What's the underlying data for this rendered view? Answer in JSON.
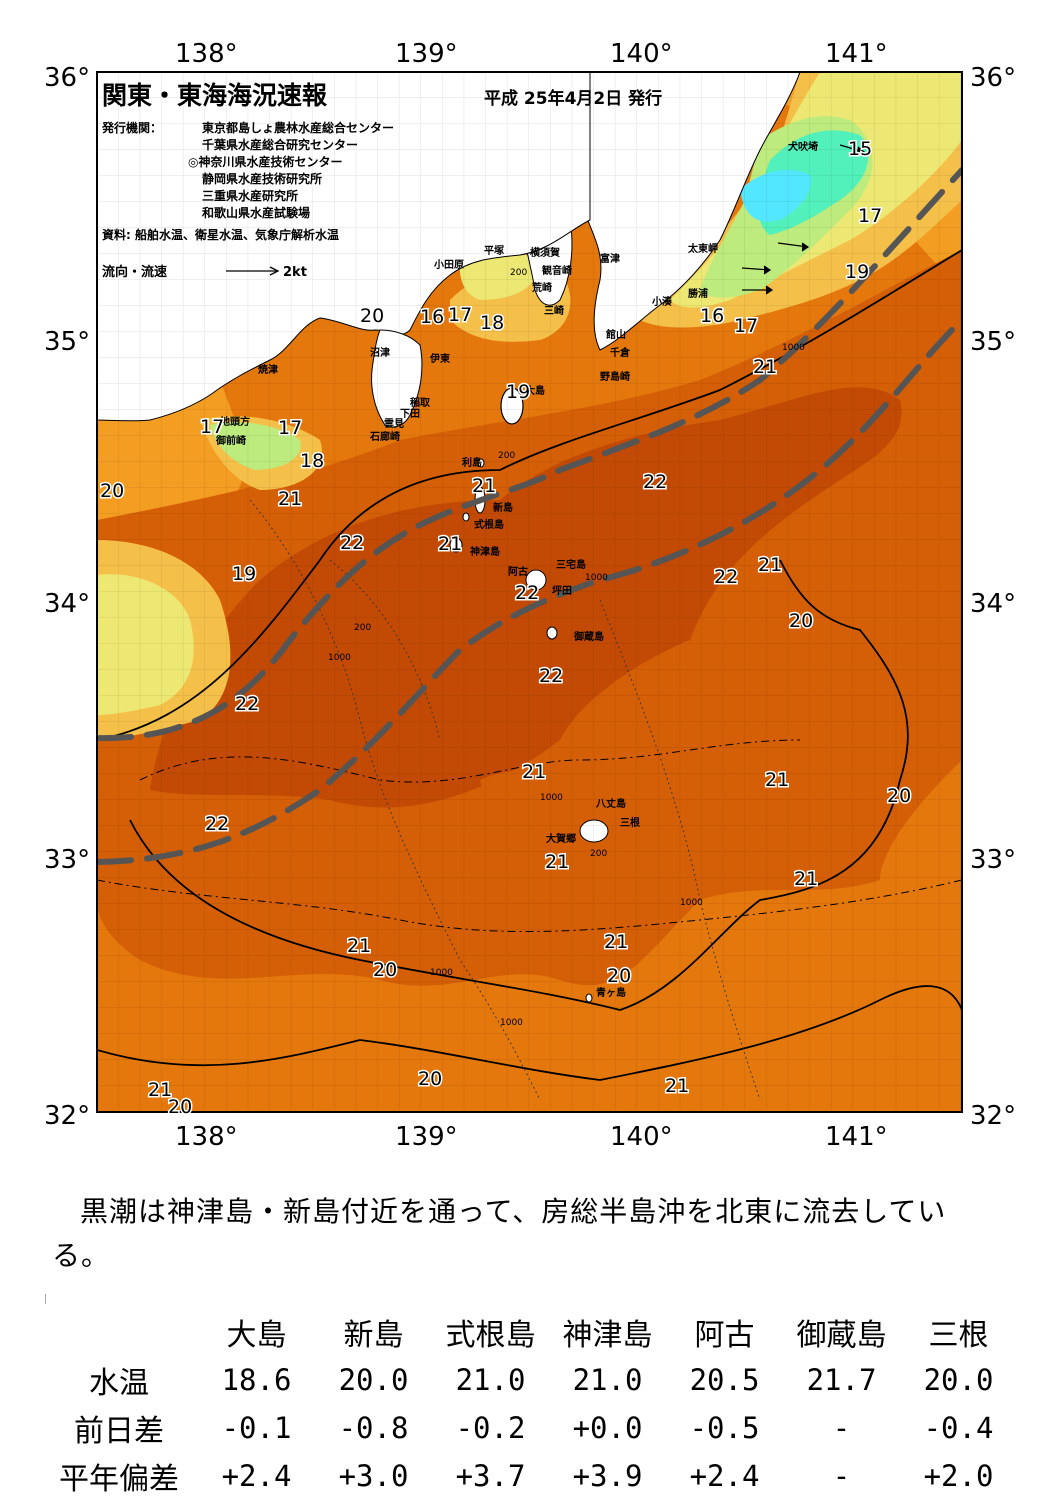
{
  "map": {
    "title": "関東・東海海況速報",
    "date": "平成 25年4月2日 発行",
    "publisher_label": "発行機関：",
    "publishers": [
      "東京都島しょ農林水産総合センター",
      "千葉県水産総合研究センター",
      "◎神奈川県水産技術センター",
      "静岡県水産技術研究所",
      "三重県水産研究所",
      "和歌山県水産試験場"
    ],
    "sources": "資料: 船舶水温、衛星水温、気象庁解析水温",
    "flow_legend_label": "流向・流速",
    "flow_legend_scale": "2kt",
    "lon_labels": [
      "138°",
      "139°",
      "140°",
      "141°"
    ],
    "lat_labels": [
      "36°",
      "35°",
      "34°",
      "33°",
      "32°"
    ],
    "place_names": [
      "犬吠埼",
      "太東岬",
      "勝浦",
      "小湊",
      "富津",
      "横須賀",
      "観音崎",
      "平塚",
      "荒崎",
      "三崎",
      "小田原",
      "館山",
      "千倉",
      "野島崎",
      "沼津",
      "伊東",
      "焼津",
      "稲取",
      "下田",
      "雲見",
      "石廊崎",
      "地頭方",
      "御前崎",
      "大島",
      "利島",
      "新島",
      "式根島",
      "神津島",
      "三宅島",
      "阿古",
      "坪田",
      "御蔵島",
      "八丈島",
      "三根",
      "大賀郷",
      "青ヶ島"
    ],
    "isotherm_labels": [
      "15",
      "16",
      "17",
      "18",
      "19",
      "20",
      "21",
      "22"
    ],
    "depth_labels": [
      "200",
      "1000"
    ],
    "colors": {
      "t22": "#c24a04",
      "t21": "#d45f06",
      "t20": "#e4780d",
      "t19": "#f39d22",
      "t18": "#f5c04a",
      "t17": "#ece873",
      "t16": "#bdeb7d",
      "t15": "#52f0ba",
      "t14": "#53e6ff",
      "land": "#ffffff",
      "kuroshio_axis": "#555555"
    }
  },
  "description": "黒潮は神津島・新島付近を通って、房総半島沖を北東に流去している。",
  "table": {
    "columns": [
      "大島",
      "新島",
      "式根島",
      "神津島",
      "阿古",
      "御蔵島",
      "三根"
    ],
    "rows": [
      {
        "label": "水温",
        "values": [
          "18.6",
          "20.0",
          "21.0",
          "21.0",
          "20.5",
          "21.7",
          "20.0"
        ]
      },
      {
        "label": "前日差",
        "values": [
          "-0.1",
          "-0.8",
          "-0.2",
          "+0.0",
          "-0.5",
          "-",
          "-0.4"
        ]
      },
      {
        "label": "平年偏差",
        "values": [
          "+2.4",
          "+3.0",
          "+3.7",
          "+3.9",
          "+2.4",
          "-",
          "+2.0"
        ]
      }
    ]
  }
}
